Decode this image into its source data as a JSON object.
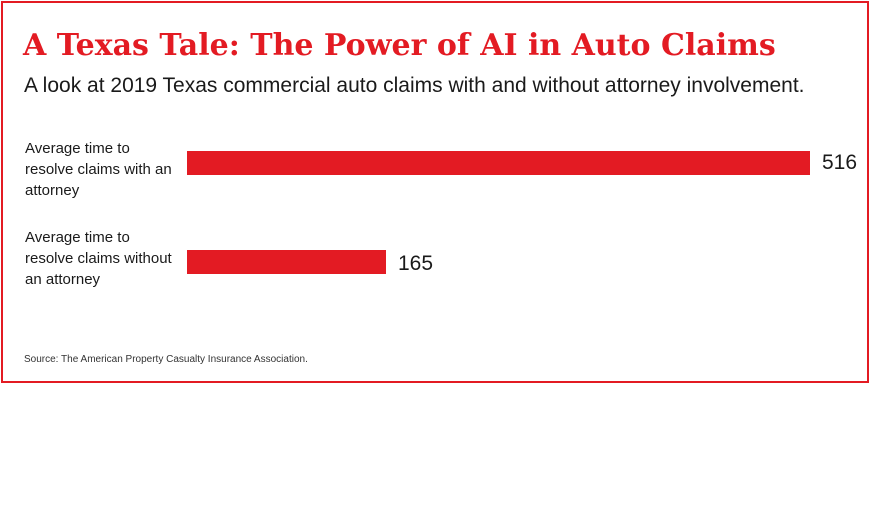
{
  "colors": {
    "accent": "#e31b23",
    "text": "#1a1a1a"
  },
  "chart_data": {
    "type": "bar",
    "orientation": "horizontal",
    "title": "A Texas Tale: The Power of AI in Auto Claims",
    "subtitle": "A look at 2019 Texas commercial auto claims with and without attorney involvement.",
    "categories": [
      "Average time to resolve claims with an attorney",
      "Average time to resolve claims without an attorney"
    ],
    "values": [
      516,
      165
    ],
    "value_labels": [
      "516",
      "165"
    ],
    "xlim": [
      0,
      516
    ],
    "grid": false,
    "source": "Source: The American Property Casualty Insurance Association."
  }
}
